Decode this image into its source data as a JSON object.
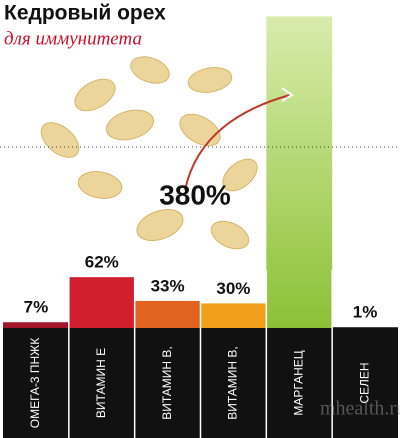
{
  "chart_data": {
    "type": "bar",
    "title": "Кедровый орех",
    "subtitle": "для иммунитета",
    "categories": [
      "ОМЕГА-3 ПНЖК",
      "ВИТАМИН Е",
      "ВИТАМИН В,",
      "ВИТАМИН В,",
      "МАРГАНЕЦ",
      "СЕЛЕН"
    ],
    "values": [
      7,
      62,
      33,
      30,
      380,
      1
    ],
    "value_labels": [
      "7%",
      "62%",
      "33%",
      "30%",
      "380%",
      "1%"
    ],
    "colors": [
      "#a3172a",
      "#d11f2e",
      "#e2621f",
      "#f29f1c",
      "#a9d13f",
      "#222222"
    ],
    "ylim": [
      0,
      400
    ],
    "watermark": "mhealth.ru"
  }
}
